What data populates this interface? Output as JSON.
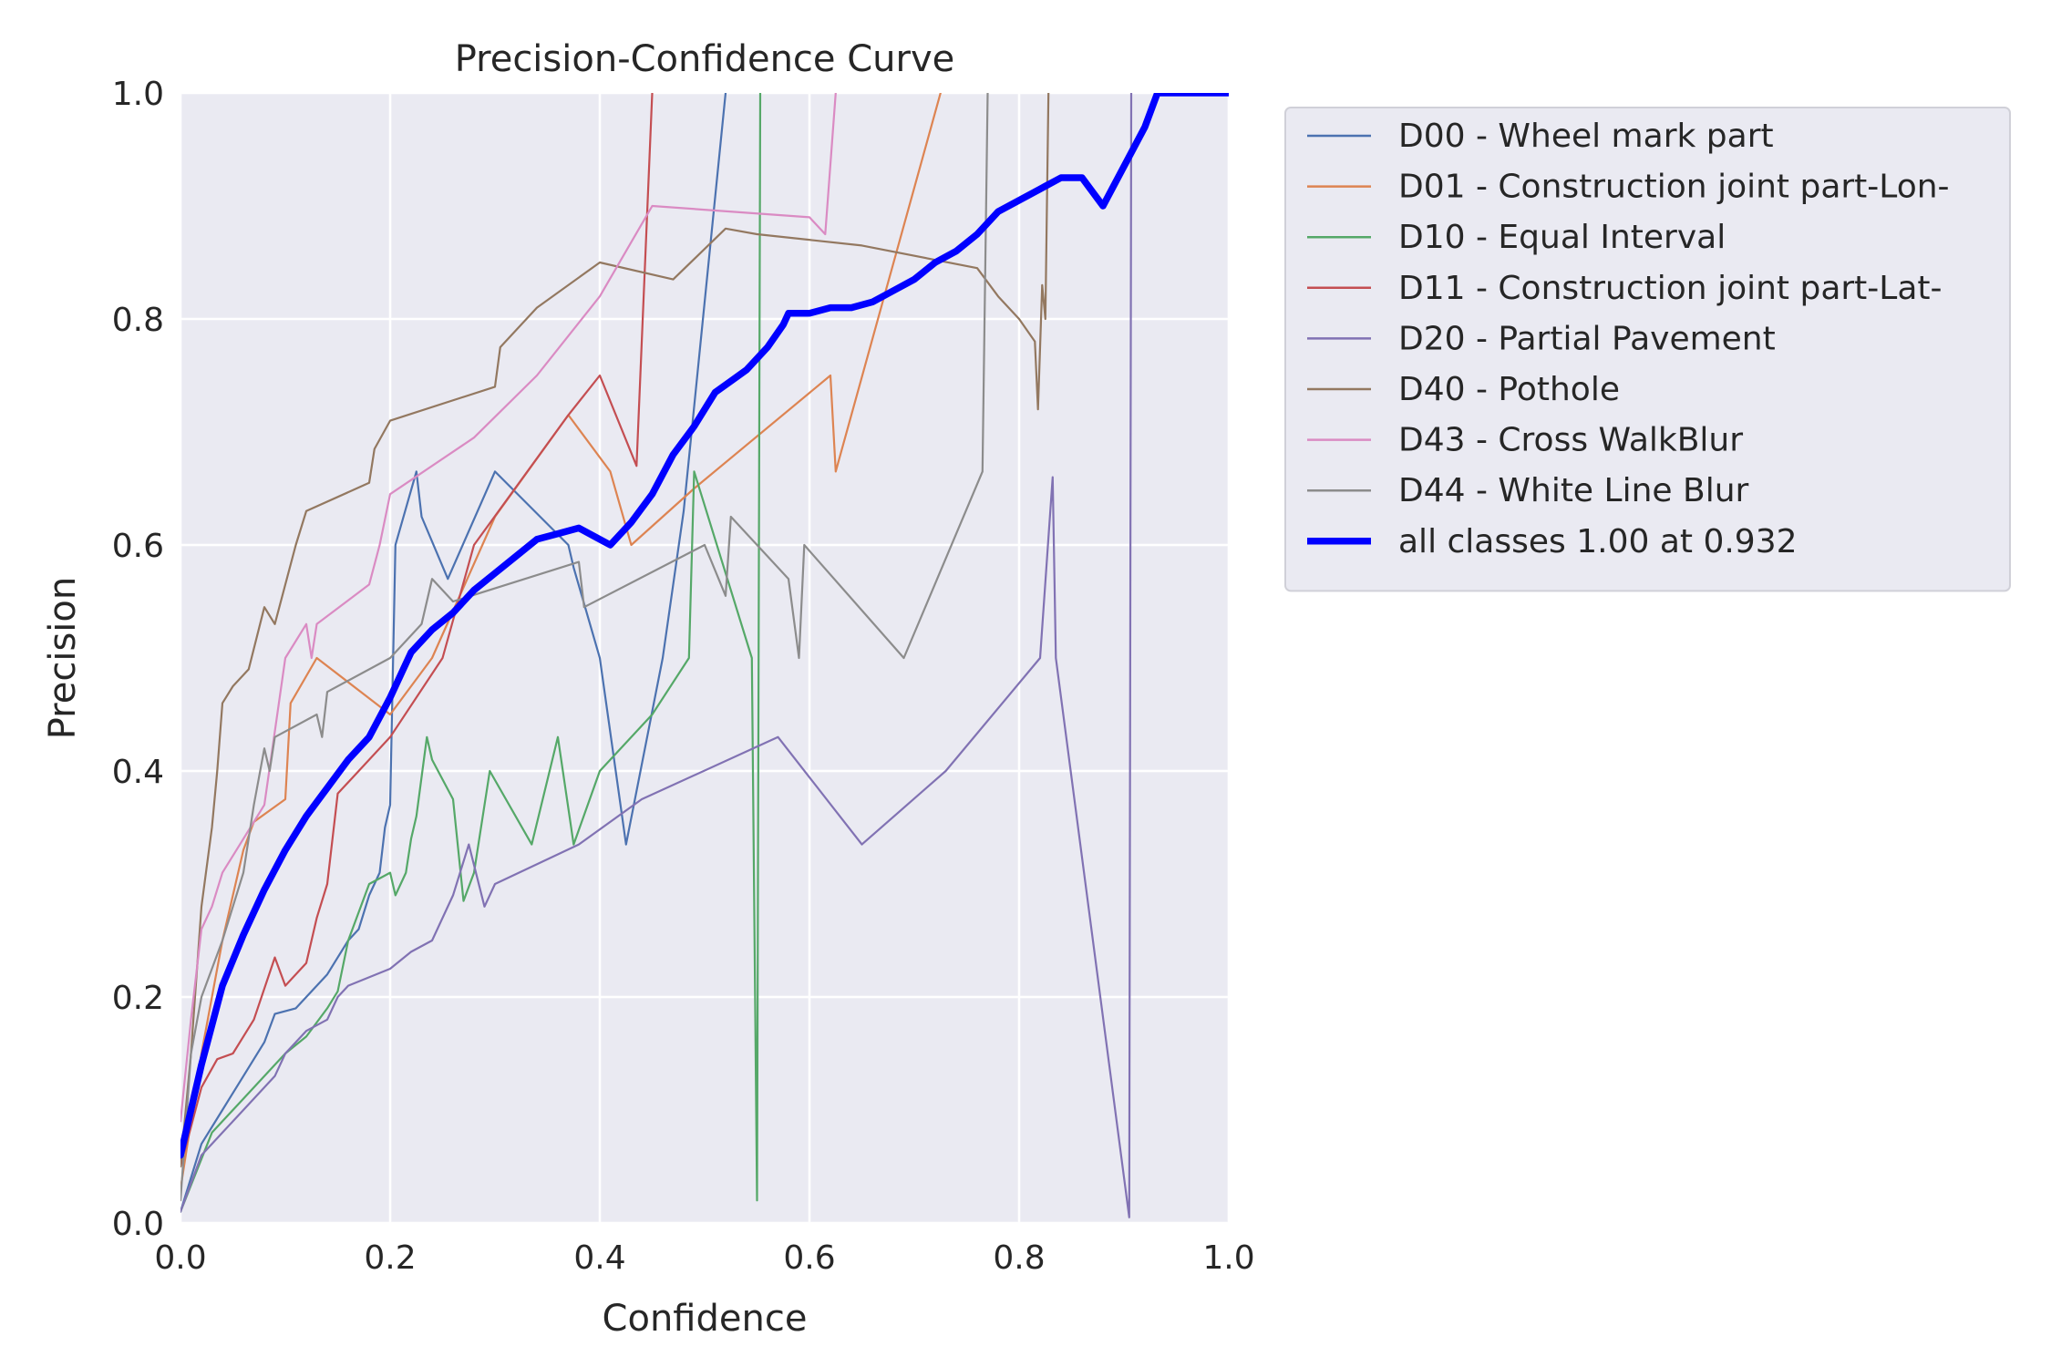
{
  "chart_data": {
    "type": "line",
    "title": "Precision-Confidence Curve",
    "xlabel": "Confidence",
    "ylabel": "Precision",
    "xlim": [
      0,
      1
    ],
    "ylim": [
      0,
      1
    ],
    "grid": true,
    "legend_position": "outside-right-top",
    "x_ticks": [
      "0.0",
      "0.2",
      "0.4",
      "0.6",
      "0.8",
      "1.0"
    ],
    "y_ticks": [
      "0.0",
      "0.2",
      "0.4",
      "0.6",
      "0.8",
      "1.0"
    ],
    "series": [
      {
        "name": "D00 - Wheel mark part",
        "color": "#4c72b0",
        "points": [
          [
            0.0,
            0.01
          ],
          [
            0.02,
            0.07
          ],
          [
            0.04,
            0.1
          ],
          [
            0.06,
            0.13
          ],
          [
            0.08,
            0.16
          ],
          [
            0.09,
            0.185
          ],
          [
            0.11,
            0.19
          ],
          [
            0.13,
            0.21
          ],
          [
            0.14,
            0.22
          ],
          [
            0.15,
            0.235
          ],
          [
            0.16,
            0.25
          ],
          [
            0.17,
            0.26
          ],
          [
            0.18,
            0.29
          ],
          [
            0.19,
            0.31
          ],
          [
            0.195,
            0.35
          ],
          [
            0.2,
            0.37
          ],
          [
            0.205,
            0.6
          ],
          [
            0.225,
            0.665
          ],
          [
            0.23,
            0.625
          ],
          [
            0.255,
            0.57
          ],
          [
            0.3,
            0.665
          ],
          [
            0.37,
            0.6
          ],
          [
            0.375,
            0.58
          ],
          [
            0.4,
            0.5
          ],
          [
            0.425,
            0.335
          ],
          [
            0.46,
            0.5
          ],
          [
            0.48,
            0.63
          ],
          [
            0.52,
            1.0
          ]
        ]
      },
      {
        "name": "D01 - Construction joint part-Lon-",
        "color": "#dd8452",
        "points": [
          [
            0.0,
            0.03
          ],
          [
            0.02,
            0.15
          ],
          [
            0.04,
            0.25
          ],
          [
            0.06,
            0.33
          ],
          [
            0.07,
            0.355
          ],
          [
            0.1,
            0.375
          ],
          [
            0.105,
            0.46
          ],
          [
            0.13,
            0.5
          ],
          [
            0.2,
            0.45
          ],
          [
            0.24,
            0.5
          ],
          [
            0.3,
            0.625
          ],
          [
            0.37,
            0.715
          ],
          [
            0.41,
            0.665
          ],
          [
            0.43,
            0.6
          ],
          [
            0.49,
            0.65
          ],
          [
            0.62,
            0.75
          ],
          [
            0.625,
            0.665
          ],
          [
            0.725,
            1.0
          ]
        ]
      },
      {
        "name": "D10 - Equal Interval",
        "color": "#55a868",
        "points": [
          [
            0.0,
            0.01
          ],
          [
            0.03,
            0.08
          ],
          [
            0.06,
            0.11
          ],
          [
            0.09,
            0.14
          ],
          [
            0.1,
            0.15
          ],
          [
            0.12,
            0.165
          ],
          [
            0.14,
            0.19
          ],
          [
            0.15,
            0.205
          ],
          [
            0.16,
            0.25
          ],
          [
            0.18,
            0.3
          ],
          [
            0.2,
            0.31
          ],
          [
            0.205,
            0.29
          ],
          [
            0.215,
            0.31
          ],
          [
            0.22,
            0.34
          ],
          [
            0.225,
            0.36
          ],
          [
            0.235,
            0.43
          ],
          [
            0.24,
            0.41
          ],
          [
            0.26,
            0.375
          ],
          [
            0.27,
            0.285
          ],
          [
            0.28,
            0.31
          ],
          [
            0.295,
            0.4
          ],
          [
            0.335,
            0.335
          ],
          [
            0.36,
            0.43
          ],
          [
            0.375,
            0.335
          ],
          [
            0.4,
            0.4
          ],
          [
            0.45,
            0.45
          ],
          [
            0.485,
            0.5
          ],
          [
            0.49,
            0.665
          ],
          [
            0.545,
            0.5
          ],
          [
            0.55,
            0.02
          ],
          [
            0.553,
            1.0
          ]
        ]
      },
      {
        "name": "D11 - Construction joint part-Lat-",
        "color": "#c44e52",
        "points": [
          [
            0.0,
            0.05
          ],
          [
            0.02,
            0.12
          ],
          [
            0.035,
            0.145
          ],
          [
            0.05,
            0.15
          ],
          [
            0.07,
            0.18
          ],
          [
            0.09,
            0.235
          ],
          [
            0.1,
            0.21
          ],
          [
            0.12,
            0.23
          ],
          [
            0.13,
            0.27
          ],
          [
            0.14,
            0.3
          ],
          [
            0.15,
            0.38
          ],
          [
            0.2,
            0.43
          ],
          [
            0.25,
            0.5
          ],
          [
            0.28,
            0.6
          ],
          [
            0.37,
            0.715
          ],
          [
            0.4,
            0.75
          ],
          [
            0.435,
            0.67
          ],
          [
            0.45,
            1.0
          ]
        ]
      },
      {
        "name": "D20 - Partial Pavement",
        "color": "#8172b3",
        "points": [
          [
            0.0,
            0.01
          ],
          [
            0.02,
            0.06
          ],
          [
            0.04,
            0.08
          ],
          [
            0.06,
            0.1
          ],
          [
            0.09,
            0.13
          ],
          [
            0.1,
            0.15
          ],
          [
            0.12,
            0.17
          ],
          [
            0.14,
            0.18
          ],
          [
            0.15,
            0.2
          ],
          [
            0.16,
            0.21
          ],
          [
            0.2,
            0.225
          ],
          [
            0.22,
            0.24
          ],
          [
            0.24,
            0.25
          ],
          [
            0.26,
            0.29
          ],
          [
            0.275,
            0.335
          ],
          [
            0.29,
            0.28
          ],
          [
            0.3,
            0.3
          ],
          [
            0.38,
            0.335
          ],
          [
            0.44,
            0.375
          ],
          [
            0.57,
            0.43
          ],
          [
            0.65,
            0.335
          ],
          [
            0.73,
            0.4
          ],
          [
            0.82,
            0.5
          ],
          [
            0.832,
            0.66
          ],
          [
            0.835,
            0.5
          ],
          [
            0.905,
            0.005
          ],
          [
            0.907,
            1.0
          ]
        ]
      },
      {
        "name": "D40 - Pothole",
        "color": "#937860",
        "points": [
          [
            0.0,
            0.05
          ],
          [
            0.01,
            0.15
          ],
          [
            0.02,
            0.28
          ],
          [
            0.03,
            0.35
          ],
          [
            0.035,
            0.4
          ],
          [
            0.04,
            0.46
          ],
          [
            0.05,
            0.475
          ],
          [
            0.065,
            0.49
          ],
          [
            0.08,
            0.545
          ],
          [
            0.09,
            0.53
          ],
          [
            0.1,
            0.565
          ],
          [
            0.11,
            0.6
          ],
          [
            0.12,
            0.63
          ],
          [
            0.18,
            0.655
          ],
          [
            0.185,
            0.685
          ],
          [
            0.2,
            0.71
          ],
          [
            0.3,
            0.74
          ],
          [
            0.305,
            0.775
          ],
          [
            0.34,
            0.81
          ],
          [
            0.4,
            0.85
          ],
          [
            0.47,
            0.835
          ],
          [
            0.52,
            0.88
          ],
          [
            0.55,
            0.875
          ],
          [
            0.65,
            0.865
          ],
          [
            0.76,
            0.845
          ],
          [
            0.78,
            0.82
          ],
          [
            0.8,
            0.8
          ],
          [
            0.815,
            0.78
          ],
          [
            0.818,
            0.72
          ],
          [
            0.822,
            0.83
          ],
          [
            0.825,
            0.8
          ],
          [
            0.828,
            1.0
          ]
        ]
      },
      {
        "name": "D43 - Cross WalkBlur",
        "color": "#da8bc3",
        "points": [
          [
            0.0,
            0.09
          ],
          [
            0.01,
            0.18
          ],
          [
            0.02,
            0.26
          ],
          [
            0.03,
            0.28
          ],
          [
            0.04,
            0.31
          ],
          [
            0.06,
            0.34
          ],
          [
            0.08,
            0.37
          ],
          [
            0.1,
            0.5
          ],
          [
            0.12,
            0.53
          ],
          [
            0.125,
            0.5
          ],
          [
            0.13,
            0.53
          ],
          [
            0.18,
            0.565
          ],
          [
            0.19,
            0.6
          ],
          [
            0.2,
            0.645
          ],
          [
            0.28,
            0.695
          ],
          [
            0.34,
            0.75
          ],
          [
            0.4,
            0.82
          ],
          [
            0.45,
            0.9
          ],
          [
            0.6,
            0.89
          ],
          [
            0.615,
            0.875
          ],
          [
            0.625,
            1.0
          ]
        ]
      },
      {
        "name": "D44 - White Line Blur",
        "color": "#8c8c8c",
        "points": [
          [
            0.0,
            0.02
          ],
          [
            0.01,
            0.15
          ],
          [
            0.02,
            0.2
          ],
          [
            0.04,
            0.25
          ],
          [
            0.05,
            0.28
          ],
          [
            0.06,
            0.31
          ],
          [
            0.07,
            0.37
          ],
          [
            0.08,
            0.42
          ],
          [
            0.085,
            0.4
          ],
          [
            0.09,
            0.43
          ],
          [
            0.13,
            0.45
          ],
          [
            0.135,
            0.43
          ],
          [
            0.14,
            0.47
          ],
          [
            0.2,
            0.5
          ],
          [
            0.23,
            0.53
          ],
          [
            0.24,
            0.57
          ],
          [
            0.26,
            0.55
          ],
          [
            0.38,
            0.585
          ],
          [
            0.385,
            0.545
          ],
          [
            0.5,
            0.6
          ],
          [
            0.52,
            0.555
          ],
          [
            0.525,
            0.625
          ],
          [
            0.58,
            0.57
          ],
          [
            0.59,
            0.5
          ],
          [
            0.595,
            0.6
          ],
          [
            0.69,
            0.5
          ],
          [
            0.765,
            0.665
          ],
          [
            0.77,
            1.0
          ]
        ]
      },
      {
        "name": "all classes 1.00 at 0.932",
        "color": "#0000ff",
        "bold": true,
        "points": [
          [
            0.0,
            0.06
          ],
          [
            0.02,
            0.14
          ],
          [
            0.04,
            0.21
          ],
          [
            0.06,
            0.255
          ],
          [
            0.08,
            0.295
          ],
          [
            0.1,
            0.33
          ],
          [
            0.12,
            0.36
          ],
          [
            0.14,
            0.385
          ],
          [
            0.16,
            0.41
          ],
          [
            0.18,
            0.43
          ],
          [
            0.2,
            0.465
          ],
          [
            0.22,
            0.505
          ],
          [
            0.24,
            0.525
          ],
          [
            0.26,
            0.54
          ],
          [
            0.28,
            0.56
          ],
          [
            0.3,
            0.575
          ],
          [
            0.32,
            0.59
          ],
          [
            0.34,
            0.605
          ],
          [
            0.36,
            0.61
          ],
          [
            0.38,
            0.615
          ],
          [
            0.4,
            0.605
          ],
          [
            0.41,
            0.6
          ],
          [
            0.43,
            0.62
          ],
          [
            0.45,
            0.645
          ],
          [
            0.47,
            0.68
          ],
          [
            0.49,
            0.705
          ],
          [
            0.51,
            0.735
          ],
          [
            0.525,
            0.745
          ],
          [
            0.54,
            0.755
          ],
          [
            0.56,
            0.775
          ],
          [
            0.575,
            0.795
          ],
          [
            0.58,
            0.805
          ],
          [
            0.6,
            0.805
          ],
          [
            0.62,
            0.81
          ],
          [
            0.64,
            0.81
          ],
          [
            0.66,
            0.815
          ],
          [
            0.68,
            0.825
          ],
          [
            0.7,
            0.835
          ],
          [
            0.72,
            0.85
          ],
          [
            0.74,
            0.86
          ],
          [
            0.76,
            0.875
          ],
          [
            0.78,
            0.895
          ],
          [
            0.8,
            0.905
          ],
          [
            0.82,
            0.915
          ],
          [
            0.84,
            0.925
          ],
          [
            0.86,
            0.925
          ],
          [
            0.88,
            0.9
          ],
          [
            0.9,
            0.935
          ],
          [
            0.92,
            0.97
          ],
          [
            0.932,
            1.0
          ],
          [
            1.0,
            1.0
          ]
        ]
      }
    ]
  }
}
